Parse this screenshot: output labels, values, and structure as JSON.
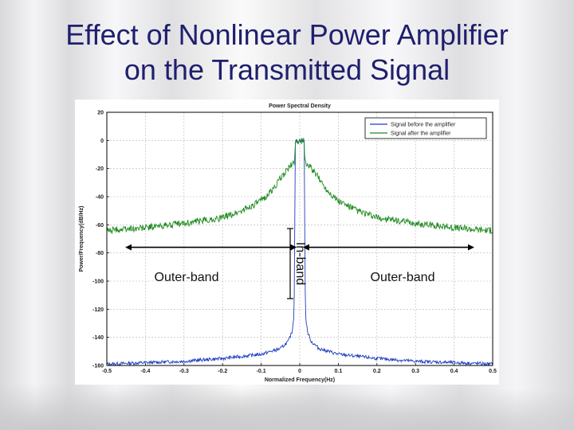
{
  "slide": {
    "title_line1": "Effect of Nonlinear Power Amplifier",
    "title_line2": "on the Transmitted Signal"
  },
  "chart_data": {
    "type": "line",
    "title": "Power Spectral Density",
    "xlabel": "Normalized Frequency(Hz)",
    "ylabel": "Power/Frequency(dB/Hz)",
    "xlim": [
      -0.5,
      0.5
    ],
    "ylim": [
      -160,
      20
    ],
    "xticks": [
      -0.5,
      -0.4,
      -0.3,
      -0.2,
      -0.1,
      0,
      0.1,
      0.2,
      0.3,
      0.4,
      0.5
    ],
    "xtick_labels": [
      "-0.5",
      "-0.4",
      "-0.3",
      "-0.2",
      "-0.1",
      "0",
      "0.1",
      "0.2",
      "0.3",
      "0.4",
      "0.5"
    ],
    "yticks": [
      20,
      0,
      -20,
      -40,
      -60,
      -80,
      -100,
      -120,
      -140,
      -160
    ],
    "ytick_labels": [
      "20",
      "0",
      "-20",
      "-40",
      "-60",
      "-80",
      "-100",
      "-120",
      "-140",
      "-160"
    ],
    "grid": true,
    "legend_position": "top-right",
    "series": [
      {
        "name": "Signal before the amplifier",
        "color": "#1f3fbf",
        "x": [
          -0.5,
          -0.4,
          -0.3,
          -0.2,
          -0.1,
          -0.05,
          -0.03,
          -0.02,
          -0.015,
          -0.013,
          -0.0125,
          0,
          0.0125,
          0.013,
          0.015,
          0.02,
          0.03,
          0.05,
          0.1,
          0.2,
          0.3,
          0.4,
          0.5
        ],
        "y": [
          -159,
          -158,
          -157,
          -155,
          -152,
          -148,
          -143,
          -136,
          -125,
          -80,
          -1,
          0,
          -1,
          -80,
          -125,
          -136,
          -143,
          -148,
          -152,
          -155,
          -157,
          -158,
          -159
        ]
      },
      {
        "name": "Signal after the amplifier",
        "color": "#1e8a1e",
        "x": [
          -0.5,
          -0.4,
          -0.3,
          -0.2,
          -0.15,
          -0.1,
          -0.07,
          -0.05,
          -0.03,
          -0.02,
          -0.013,
          -0.0125,
          0,
          0.0125,
          0.013,
          0.02,
          0.03,
          0.05,
          0.07,
          0.1,
          0.15,
          0.2,
          0.3,
          0.4,
          0.5
        ],
        "y": [
          -64,
          -62,
          -59,
          -55,
          -50,
          -43,
          -35,
          -27,
          -20,
          -17,
          -15,
          -1,
          0,
          -1,
          -15,
          -17,
          -20,
          -27,
          -35,
          -43,
          -50,
          -55,
          -59,
          -62,
          -64
        ]
      }
    ],
    "annotations": [
      {
        "text": "Outer-band",
        "arrow_from": -0.45,
        "arrow_to": -0.01,
        "y": -76
      },
      {
        "text": "In-band",
        "orientation": "vertical"
      },
      {
        "text": "Outer-band",
        "arrow_from": 0.01,
        "arrow_to": 0.45,
        "y": -76
      }
    ]
  }
}
